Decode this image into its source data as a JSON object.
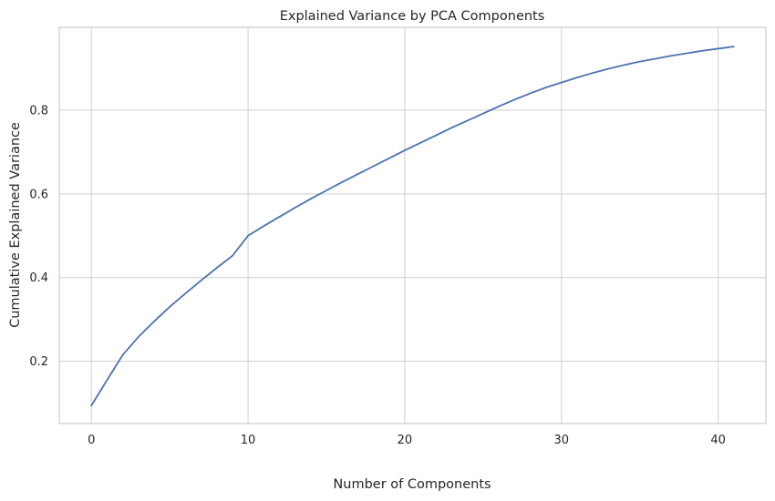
{
  "chart_data": {
    "type": "line",
    "title": "Explained Variance by PCA Components",
    "xlabel": "Number of Components",
    "ylabel": "Cumulative Explained Variance",
    "xlim": [
      -2.05,
      43.05
    ],
    "ylim": [
      0.051,
      0.998
    ],
    "xticks": [
      0,
      10,
      20,
      30,
      40
    ],
    "xtick_labels": [
      "0",
      "10",
      "20",
      "30",
      "40"
    ],
    "yticks": [
      0.2,
      0.4,
      0.6,
      0.8
    ],
    "ytick_labels": [
      "0.2",
      "0.4",
      "0.6",
      "0.8"
    ],
    "grid": true,
    "series": [
      {
        "color": "#4c72b0",
        "x": [
          0,
          1,
          2,
          3,
          4,
          5,
          6,
          7,
          8,
          9,
          10,
          11,
          12,
          13,
          14,
          15,
          16,
          17,
          18,
          19,
          20,
          21,
          22,
          23,
          24,
          25,
          26,
          27,
          28,
          29,
          30,
          31,
          32,
          33,
          34,
          35,
          36,
          37,
          38,
          39,
          40,
          41
        ],
        "y": [
          0.094,
          0.155,
          0.215,
          0.258,
          0.295,
          0.33,
          0.362,
          0.393,
          0.423,
          0.452,
          0.5,
          0.523,
          0.545,
          0.567,
          0.588,
          0.608,
          0.628,
          0.647,
          0.666,
          0.685,
          0.704,
          0.722,
          0.74,
          0.758,
          0.775,
          0.792,
          0.809,
          0.825,
          0.84,
          0.854,
          0.866,
          0.878,
          0.889,
          0.899,
          0.908,
          0.916,
          0.923,
          0.93,
          0.936,
          0.942,
          0.947,
          0.952
        ]
      }
    ]
  }
}
